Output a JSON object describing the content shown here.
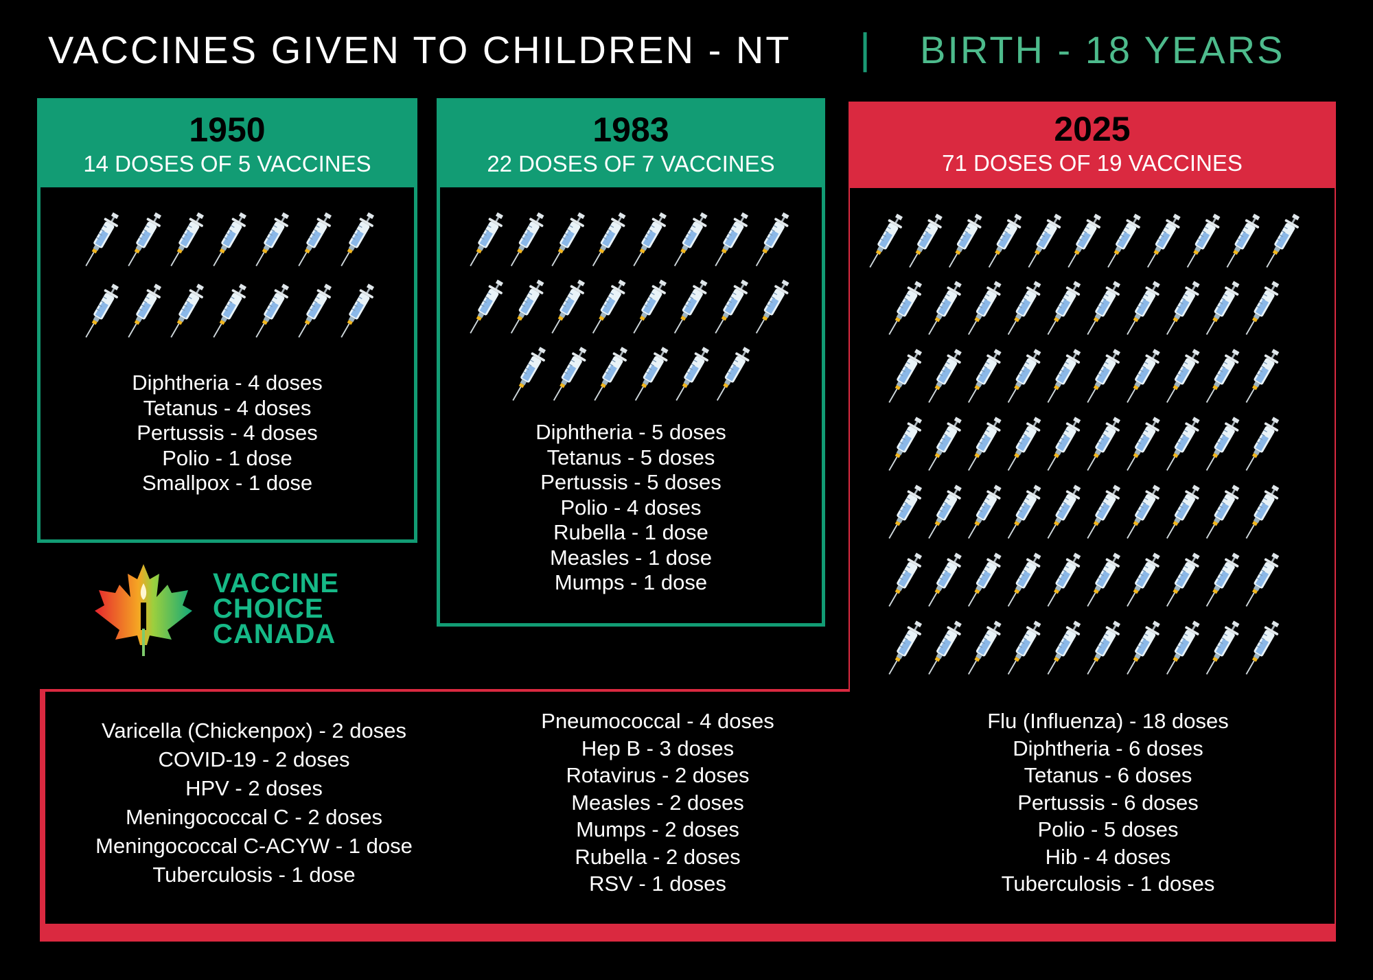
{
  "header": {
    "title": "VACCINES GIVEN TO CHILDREN - NT",
    "separator": "|",
    "subtitle": "BIRTH - 18 YEARS"
  },
  "colors": {
    "green": "#129c74",
    "red": "#da2940",
    "accent_text": "#4dbb8c",
    "background": "#000000"
  },
  "columns": [
    {
      "year": "1950",
      "summary": "14 DOSES OF 5 VACCINES",
      "syringe_count": 14,
      "doses": [
        "Diphtheria - 4 doses",
        "Tetanus - 4 doses",
        "Pertussis - 4 doses",
        "Polio - 1 dose",
        "Smallpox - 1 dose"
      ]
    },
    {
      "year": "1983",
      "summary": "22 DOSES OF 7 VACCINES",
      "syringe_count": 22,
      "doses": [
        "Diphtheria - 5 doses",
        "Tetanus - 5 doses",
        "Pertussis - 5 doses",
        "Polio - 4 doses",
        "Rubella - 1 dose",
        "Measles - 1 dose",
        "Mumps - 1 dose"
      ]
    },
    {
      "year": "2025",
      "summary": "71 DOSES OF 19 VACCINES",
      "syringe_count": 71
    }
  ],
  "bottom_lists": {
    "left": [
      "Varicella (Chickenpox) - 2 doses",
      "COVID-19 - 2 doses",
      "HPV - 2 doses",
      "Meningococcal C - 2 doses",
      "Meningococcal C-ACYW - 1 dose",
      "Tuberculosis - 1 dose"
    ],
    "middle": [
      "Pneumococcal - 4 doses",
      "Hep B - 3 doses",
      "Rotavirus - 2 doses",
      "Measles - 2 doses",
      "Mumps - 2 doses",
      "Rubella - 2 doses",
      "RSV - 1 doses"
    ],
    "right": [
      "Flu (Influenza) - 18 doses",
      "Diphtheria - 6 doses",
      "Tetanus - 6 doses",
      "Pertussis - 6 doses",
      "Polio - 5 doses",
      "Hib - 4 doses",
      "Tuberculosis - 1 doses"
    ]
  },
  "logo": {
    "line1": "VACCINE",
    "line2": "CHOICE",
    "line3": "CANADA",
    "icon": "maple-leaf-candle-icon"
  }
}
